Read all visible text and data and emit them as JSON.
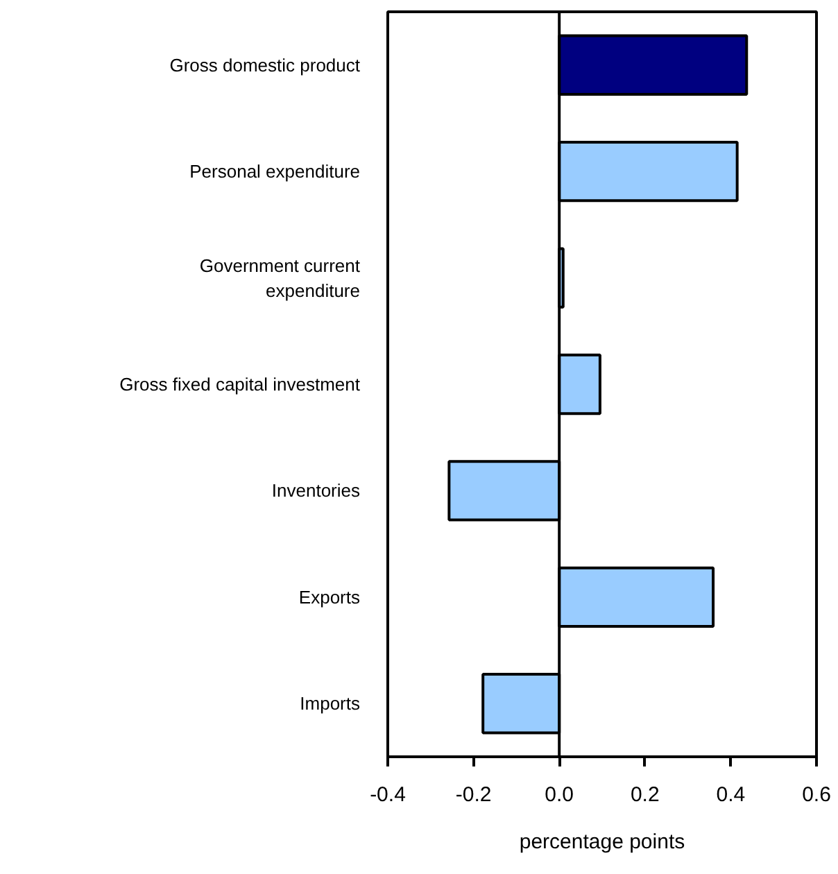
{
  "chart_data": {
    "type": "bar",
    "orientation": "horizontal",
    "categories": [
      "Gross domestic product",
      "Personal expenditure",
      "Government current\nexpenditure",
      "Gross fixed capital investment",
      "Inventories",
      "Exports",
      "Imports"
    ],
    "values": [
      0.437,
      0.415,
      0.009,
      0.095,
      -0.257,
      0.359,
      -0.178
    ],
    "colors": [
      "#000080",
      "#99ccff",
      "#99ccff",
      "#99ccff",
      "#99ccff",
      "#99ccff",
      "#99ccff"
    ],
    "xlabel": "percentage points",
    "xlim": [
      -0.4,
      0.6
    ],
    "xticks": [
      {
        "value": -0.4,
        "label": "-0.4"
      },
      {
        "value": -0.2,
        "label": "-0.2"
      },
      {
        "value": 0,
        "label": "0.0"
      },
      {
        "value": 0.2,
        "label": "0.2"
      },
      {
        "value": 0.4,
        "label": "0.4"
      },
      {
        "value": 0.6,
        "label": "0.6"
      }
    ],
    "ref_lines": [
      {
        "axis": "x",
        "value": 0,
        "color": "#000000"
      }
    ]
  }
}
